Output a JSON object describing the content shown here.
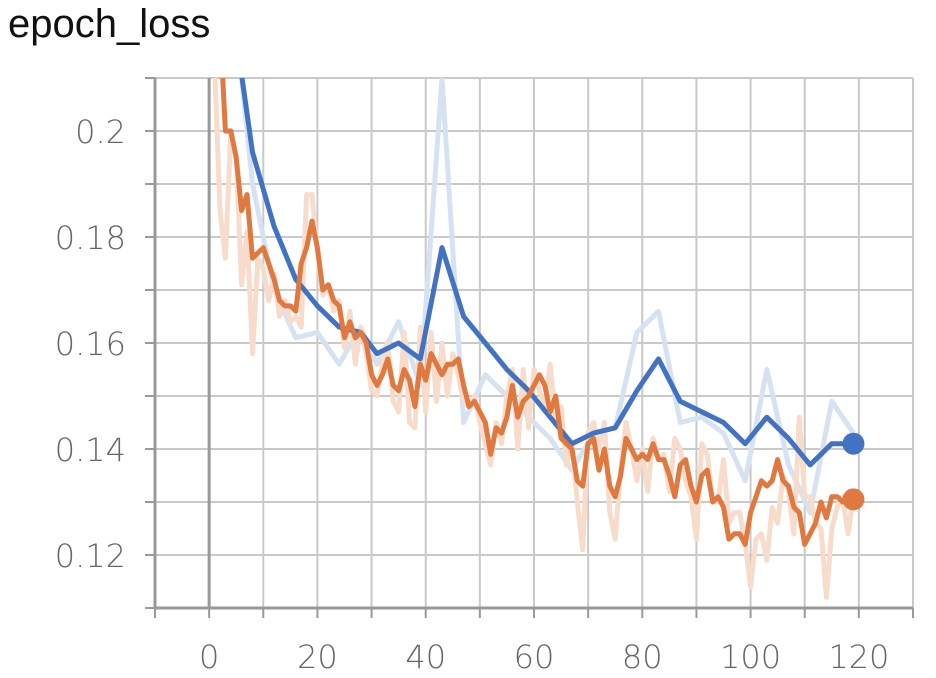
{
  "title": "epoch_loss",
  "chart_data": {
    "type": "line",
    "title": "epoch_loss",
    "xlabel": "",
    "ylabel": "",
    "xlim": [
      -10,
      130
    ],
    "ylim": [
      0.11,
      0.21
    ],
    "x_ticks": [
      0,
      20,
      40,
      60,
      80,
      100,
      120
    ],
    "y_ticks": [
      0.12,
      0.14,
      0.16,
      0.18,
      0.2
    ],
    "x_tick_labels": [
      "0",
      "20",
      "40",
      "60",
      "80",
      "100",
      "120"
    ],
    "y_tick_labels": [
      "0.12",
      "0.14",
      "0.16",
      "0.18",
      "0.2"
    ],
    "grid": true,
    "series": [
      {
        "name": "blue-smoothed",
        "color": "#4173c2",
        "raw_color": "#d6e2f2",
        "raw_values": [
          [
            0,
            0.27
          ],
          [
            4,
            0.23
          ],
          [
            8,
            0.19
          ],
          [
            12,
            0.17
          ],
          [
            16,
            0.161
          ],
          [
            20,
            0.162
          ],
          [
            24,
            0.156
          ],
          [
            28,
            0.163
          ],
          [
            31,
            0.156
          ],
          [
            35,
            0.164
          ],
          [
            39,
            0.152
          ],
          [
            43,
            0.21
          ],
          [
            47,
            0.145
          ],
          [
            51,
            0.154
          ],
          [
            55,
            0.15
          ],
          [
            59,
            0.146
          ],
          [
            63,
            0.142
          ],
          [
            67,
            0.136
          ],
          [
            71,
            0.143
          ],
          [
            75,
            0.144
          ],
          [
            79,
            0.162
          ],
          [
            83,
            0.166
          ],
          [
            87,
            0.145
          ],
          [
            91,
            0.146
          ],
          [
            95,
            0.143
          ],
          [
            99,
            0.134
          ],
          [
            103,
            0.155
          ],
          [
            107,
            0.137
          ],
          [
            111,
            0.128
          ],
          [
            115,
            0.149
          ],
          [
            119,
            0.143
          ]
        ],
        "smoothed_values": [
          [
            0,
            0.27
          ],
          [
            4,
            0.225
          ],
          [
            8,
            0.196
          ],
          [
            12,
            0.182
          ],
          [
            16,
            0.172
          ],
          [
            20,
            0.167
          ],
          [
            24,
            0.163
          ],
          [
            28,
            0.162
          ],
          [
            31,
            0.158
          ],
          [
            35,
            0.16
          ],
          [
            39,
            0.157
          ],
          [
            43,
            0.178
          ],
          [
            47,
            0.165
          ],
          [
            51,
            0.16
          ],
          [
            55,
            0.155
          ],
          [
            59,
            0.151
          ],
          [
            63,
            0.146
          ],
          [
            67,
            0.141
          ],
          [
            71,
            0.143
          ],
          [
            75,
            0.144
          ],
          [
            79,
            0.151
          ],
          [
            83,
            0.157
          ],
          [
            87,
            0.149
          ],
          [
            91,
            0.147
          ],
          [
            95,
            0.145
          ],
          [
            99,
            0.141
          ],
          [
            103,
            0.146
          ],
          [
            107,
            0.142
          ],
          [
            111,
            0.137
          ],
          [
            115,
            0.141
          ],
          [
            119,
            0.141
          ]
        ],
        "last_value": 0.141
      },
      {
        "name": "orange-smoothed",
        "color": "#e0793f",
        "raw_color": "#f8dccb",
        "raw_values": [
          [
            0,
            0.24
          ],
          [
            2,
            0.185
          ],
          [
            3,
            0.176
          ],
          [
            4,
            0.2
          ],
          [
            5,
            0.195
          ],
          [
            6,
            0.171
          ],
          [
            7,
            0.181
          ],
          [
            8,
            0.158
          ],
          [
            9,
            0.176
          ],
          [
            10,
            0.174
          ],
          [
            11,
            0.168
          ],
          [
            12,
            0.173
          ],
          [
            13,
            0.165
          ],
          [
            14,
            0.168
          ],
          [
            15,
            0.164
          ],
          [
            16,
            0.165
          ],
          [
            17,
            0.163
          ],
          [
            18,
            0.188
          ],
          [
            19,
            0.188
          ],
          [
            20,
            0.177
          ],
          [
            21,
            0.169
          ],
          [
            22,
            0.171
          ],
          [
            23,
            0.166
          ],
          [
            24,
            0.168
          ],
          [
            25,
            0.159
          ],
          [
            26,
            0.166
          ],
          [
            27,
            0.156
          ],
          [
            28,
            0.163
          ],
          [
            29,
            0.158
          ],
          [
            30,
            0.151
          ],
          [
            31,
            0.15
          ],
          [
            32,
            0.156
          ],
          [
            33,
            0.16
          ],
          [
            34,
            0.149
          ],
          [
            35,
            0.147
          ],
          [
            36,
            0.162
          ],
          [
            37,
            0.145
          ],
          [
            38,
            0.144
          ],
          [
            39,
            0.163
          ],
          [
            40,
            0.147
          ],
          [
            41,
            0.162
          ],
          [
            42,
            0.149
          ],
          [
            43,
            0.16
          ],
          [
            44,
            0.15
          ],
          [
            45,
            0.158
          ],
          [
            46,
            0.154
          ],
          [
            47,
            0.149
          ],
          [
            48,
            0.148
          ],
          [
            49,
            0.15
          ],
          [
            50,
            0.145
          ],
          [
            51,
            0.141
          ],
          [
            52,
            0.137
          ],
          [
            53,
            0.145
          ],
          [
            54,
            0.141
          ],
          [
            55,
            0.15
          ],
          [
            56,
            0.155
          ],
          [
            57,
            0.14
          ],
          [
            58,
            0.155
          ],
          [
            59,
            0.144
          ],
          [
            60,
            0.155
          ],
          [
            61,
            0.151
          ],
          [
            62,
            0.148
          ],
          [
            63,
            0.156
          ],
          [
            64,
            0.145
          ],
          [
            65,
            0.148
          ],
          [
            66,
            0.137
          ],
          [
            67,
            0.141
          ],
          [
            68,
            0.13
          ],
          [
            69,
            0.121
          ],
          [
            70,
            0.143
          ],
          [
            71,
            0.145
          ],
          [
            72,
            0.14
          ],
          [
            73,
            0.145
          ],
          [
            74,
            0.128
          ],
          [
            75,
            0.123
          ],
          [
            76,
            0.136
          ],
          [
            77,
            0.145
          ],
          [
            78,
            0.14
          ],
          [
            79,
            0.134
          ],
          [
            80,
            0.14
          ],
          [
            81,
            0.132
          ],
          [
            82,
            0.142
          ],
          [
            83,
            0.138
          ],
          [
            84,
            0.139
          ],
          [
            85,
            0.132
          ],
          [
            86,
            0.142
          ],
          [
            87,
            0.14
          ],
          [
            88,
            0.134
          ],
          [
            89,
            0.131
          ],
          [
            90,
            0.123
          ],
          [
            91,
            0.141
          ],
          [
            92,
            0.139
          ],
          [
            93,
            0.13
          ],
          [
            94,
            0.13
          ],
          [
            95,
            0.138
          ],
          [
            96,
            0.126
          ],
          [
            97,
            0.128
          ],
          [
            98,
            0.128
          ],
          [
            99,
            0.122
          ],
          [
            100,
            0.114
          ],
          [
            101,
            0.123
          ],
          [
            102,
            0.124
          ],
          [
            103,
            0.119
          ],
          [
            104,
            0.129
          ],
          [
            105,
            0.126
          ],
          [
            106,
            0.135
          ],
          [
            107,
            0.132
          ],
          [
            108,
            0.124
          ],
          [
            109,
            0.146
          ],
          [
            110,
            0.131
          ],
          [
            111,
            0.131
          ],
          [
            112,
            0.126
          ],
          [
            113,
            0.125
          ],
          [
            114,
            0.112
          ],
          [
            115,
            0.125
          ],
          [
            116,
            0.129
          ],
          [
            117,
            0.131
          ],
          [
            118,
            0.124
          ],
          [
            119,
            0.131
          ]
        ],
        "smoothed_values": [
          [
            2.5,
            0.21
          ],
          [
            3,
            0.2
          ],
          [
            4,
            0.2
          ],
          [
            5,
            0.195
          ],
          [
            6,
            0.185
          ],
          [
            7,
            0.188
          ],
          [
            8,
            0.176
          ],
          [
            10,
            0.178
          ],
          [
            11,
            0.175
          ],
          [
            12,
            0.172
          ],
          [
            13,
            0.168
          ],
          [
            14,
            0.167
          ],
          [
            15,
            0.167
          ],
          [
            16,
            0.166
          ],
          [
            17,
            0.175
          ],
          [
            18,
            0.178
          ],
          [
            19,
            0.183
          ],
          [
            20,
            0.178
          ],
          [
            21,
            0.17
          ],
          [
            22,
            0.171
          ],
          [
            23,
            0.168
          ],
          [
            24,
            0.167
          ],
          [
            25,
            0.161
          ],
          [
            26,
            0.164
          ],
          [
            27,
            0.161
          ],
          [
            28,
            0.162
          ],
          [
            29,
            0.16
          ],
          [
            30,
            0.154
          ],
          [
            31,
            0.152
          ],
          [
            32,
            0.154
          ],
          [
            33,
            0.157
          ],
          [
            34,
            0.152
          ],
          [
            35,
            0.151
          ],
          [
            36,
            0.155
          ],
          [
            37,
            0.153
          ],
          [
            38,
            0.148
          ],
          [
            39,
            0.156
          ],
          [
            40,
            0.153
          ],
          [
            41,
            0.158
          ],
          [
            42,
            0.156
          ],
          [
            43,
            0.154
          ],
          [
            44,
            0.156
          ],
          [
            45,
            0.156
          ],
          [
            46,
            0.157
          ],
          [
            47,
            0.152
          ],
          [
            48,
            0.148
          ],
          [
            49,
            0.149
          ],
          [
            50,
            0.147
          ],
          [
            51,
            0.145
          ],
          [
            52,
            0.139
          ],
          [
            53,
            0.144
          ],
          [
            54,
            0.143
          ],
          [
            55,
            0.146
          ],
          [
            56,
            0.152
          ],
          [
            57,
            0.146
          ],
          [
            58,
            0.149
          ],
          [
            59,
            0.15
          ],
          [
            60,
            0.152
          ],
          [
            61,
            0.154
          ],
          [
            62,
            0.152
          ],
          [
            63,
            0.147
          ],
          [
            64,
            0.15
          ],
          [
            65,
            0.142
          ],
          [
            66,
            0.141
          ],
          [
            67,
            0.14
          ],
          [
            68,
            0.134
          ],
          [
            69,
            0.133
          ],
          [
            70,
            0.141
          ],
          [
            71,
            0.142
          ],
          [
            72,
            0.136
          ],
          [
            73,
            0.14
          ],
          [
            74,
            0.133
          ],
          [
            75,
            0.131
          ],
          [
            76,
            0.135
          ],
          [
            77,
            0.142
          ],
          [
            78,
            0.14
          ],
          [
            79,
            0.138
          ],
          [
            80,
            0.139
          ],
          [
            81,
            0.138
          ],
          [
            82,
            0.141
          ],
          [
            83,
            0.138
          ],
          [
            84,
            0.138
          ],
          [
            85,
            0.135
          ],
          [
            86,
            0.131
          ],
          [
            87,
            0.137
          ],
          [
            88,
            0.138
          ],
          [
            89,
            0.133
          ],
          [
            90,
            0.13
          ],
          [
            91,
            0.135
          ],
          [
            92,
            0.136
          ],
          [
            93,
            0.13
          ],
          [
            94,
            0.131
          ],
          [
            95,
            0.129
          ],
          [
            96,
            0.123
          ],
          [
            97,
            0.124
          ],
          [
            98,
            0.124
          ],
          [
            99,
            0.122
          ],
          [
            100,
            0.128
          ],
          [
            101,
            0.131
          ],
          [
            102,
            0.134
          ],
          [
            103,
            0.133
          ],
          [
            104,
            0.134
          ],
          [
            105,
            0.138
          ],
          [
            106,
            0.134
          ],
          [
            107,
            0.133
          ],
          [
            108,
            0.129
          ],
          [
            109,
            0.128
          ],
          [
            110,
            0.122
          ],
          [
            111,
            0.124
          ],
          [
            112,
            0.126
          ],
          [
            113,
            0.13
          ],
          [
            114,
            0.127
          ],
          [
            115,
            0.131
          ],
          [
            116,
            0.131
          ],
          [
            117,
            0.13
          ],
          [
            118,
            0.131
          ],
          [
            119,
            0.13
          ]
        ],
        "last_value": 0.1305
      }
    ]
  }
}
